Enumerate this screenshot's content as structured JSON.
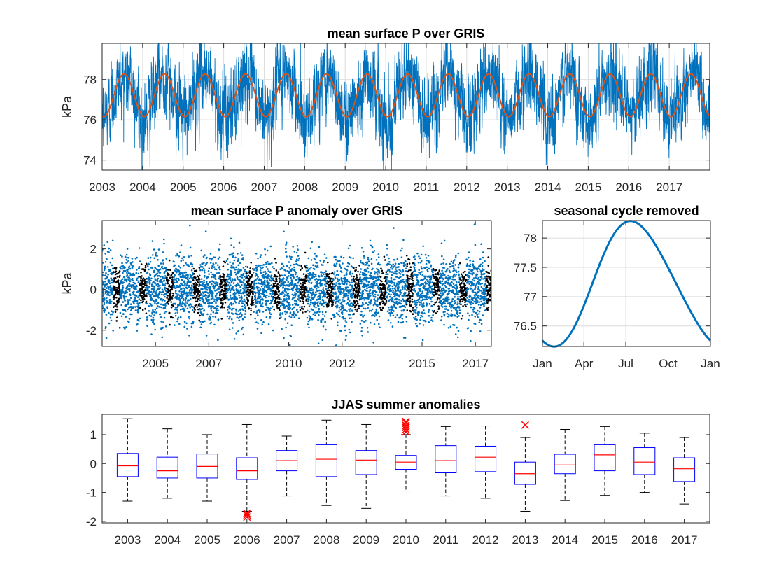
{
  "chart_data": [
    {
      "id": "p1",
      "type": "line",
      "title": "mean surface P over GRIS",
      "xlabel": "",
      "ylabel": "kPa",
      "xlim": [
        2003.0,
        2018.0
      ],
      "ylim": [
        73.5,
        79.8
      ],
      "xticks": [
        2003,
        2004,
        2005,
        2006,
        2007,
        2008,
        2009,
        2010,
        2011,
        2012,
        2013,
        2014,
        2015,
        2016,
        2017
      ],
      "xticklabels": [
        "2003",
        "2004",
        "2005",
        "2006",
        "2007",
        "2008",
        "2009",
        "2010",
        "2011",
        "2012",
        "2013",
        "2014",
        "2015",
        "2016",
        "2017"
      ],
      "yticks": [
        74,
        76,
        78
      ],
      "yticklabels": [
        "74",
        "76",
        "78"
      ],
      "grid": true,
      "series": [
        {
          "kind": "daily-noisy",
          "color": "#0072BD",
          "mean": 77.2,
          "amplitude": 1.05,
          "noise_sd": 0.95
        },
        {
          "kind": "seasonal-cycle",
          "color": "#D95319",
          "mean": 77.22,
          "amplitude": 1.06,
          "peak_month": 7
        }
      ]
    },
    {
      "id": "p2",
      "type": "scatter",
      "title": "mean surface P anomaly over GRIS",
      "xlabel": "",
      "ylabel": "kPa",
      "xlim": [
        2003.0,
        2017.6
      ],
      "ylim": [
        -2.8,
        3.4
      ],
      "xticks": [
        2005,
        2007,
        2010,
        2012,
        2015,
        2017
      ],
      "xticklabels": [
        "2005",
        "2007",
        "2010",
        "2012",
        "2015",
        "2017"
      ],
      "yticks": [
        -2,
        0,
        2
      ],
      "yticklabels": [
        "-2",
        "0",
        "2"
      ],
      "grid": false,
      "series": [
        {
          "kind": "daily-anomaly",
          "color": "#0072BD",
          "noise_sd": 0.85
        },
        {
          "kind": "JJAS-anomaly",
          "color": "#000000",
          "noise_sd": 0.55,
          "months": [
            6,
            7,
            8,
            9
          ]
        }
      ]
    },
    {
      "id": "p3",
      "type": "line",
      "title": "seasonal cycle removed",
      "xlabel": "",
      "ylabel": "",
      "xlim": [
        0,
        365
      ],
      "ylim": [
        76.15,
        78.3
      ],
      "xticks": [
        0,
        90,
        181,
        273,
        365
      ],
      "xticklabels": [
        "Jan",
        "Apr",
        "Jul",
        "Oct",
        "Jan"
      ],
      "yticks": [
        76.5,
        77,
        77.5,
        78
      ],
      "yticklabels": [
        "76.5",
        "77",
        "77.5",
        "78"
      ],
      "grid": true,
      "series": [
        {
          "kind": "seasonal-cycle",
          "color": "#0072BD",
          "mean": 77.22,
          "amplitude": 1.06,
          "peak_day": 182
        }
      ]
    },
    {
      "id": "p4",
      "type": "box",
      "title": "JJAS summer anomalies",
      "xlabel": "",
      "ylabel": "",
      "ylim": [
        -2.05,
        1.7
      ],
      "yticks": [
        -2,
        -1,
        0,
        1
      ],
      "yticklabels": [
        "-2",
        "-1",
        "0",
        "1"
      ],
      "grid": false,
      "categories": [
        "2003",
        "2004",
        "2005",
        "2006",
        "2007",
        "2008",
        "2009",
        "2010",
        "2011",
        "2012",
        "2013",
        "2014",
        "2015",
        "2016",
        "2017"
      ],
      "boxes": [
        {
          "low": -1.3,
          "q1": -0.45,
          "median": -0.08,
          "q3": 0.35,
          "high": 1.55,
          "outliers": []
        },
        {
          "low": -1.2,
          "q1": -0.5,
          "median": -0.25,
          "q3": 0.22,
          "high": 1.2,
          "outliers": []
        },
        {
          "low": -1.3,
          "q1": -0.5,
          "median": -0.1,
          "q3": 0.33,
          "high": 1.0,
          "outliers": []
        },
        {
          "low": -1.65,
          "q1": -0.55,
          "median": -0.25,
          "q3": 0.2,
          "high": 1.35,
          "outliers": [
            -1.72,
            -1.78,
            -1.85
          ]
        },
        {
          "low": -1.12,
          "q1": -0.25,
          "median": 0.1,
          "q3": 0.45,
          "high": 0.95,
          "outliers": []
        },
        {
          "low": -1.45,
          "q1": -0.45,
          "median": 0.15,
          "q3": 0.65,
          "high": 1.5,
          "outliers": []
        },
        {
          "low": -1.55,
          "q1": -0.38,
          "median": 0.12,
          "q3": 0.45,
          "high": 1.35,
          "outliers": []
        },
        {
          "low": -0.95,
          "q1": -0.2,
          "median": 0.05,
          "q3": 0.28,
          "high": 1.0,
          "outliers": [
            1.1,
            1.18,
            1.25,
            1.32,
            1.4,
            1.45
          ]
        },
        {
          "low": -1.12,
          "q1": -0.32,
          "median": 0.1,
          "q3": 0.62,
          "high": 1.28,
          "outliers": []
        },
        {
          "low": -1.2,
          "q1": -0.28,
          "median": 0.22,
          "q3": 0.6,
          "high": 1.3,
          "outliers": []
        },
        {
          "low": -1.65,
          "q1": -0.72,
          "median": -0.35,
          "q3": 0.05,
          "high": 0.9,
          "outliers": [
            1.33
          ]
        },
        {
          "low": -1.28,
          "q1": -0.35,
          "median": -0.05,
          "q3": 0.32,
          "high": 1.18,
          "outliers": []
        },
        {
          "low": -1.1,
          "q1": -0.25,
          "median": 0.3,
          "q3": 0.65,
          "high": 1.28,
          "outliers": []
        },
        {
          "low": -1.0,
          "q1": -0.38,
          "median": 0.05,
          "q3": 0.55,
          "high": 1.05,
          "outliers": []
        },
        {
          "low": -1.4,
          "q1": -0.62,
          "median": -0.18,
          "q3": 0.2,
          "high": 0.9,
          "outliers": []
        }
      ]
    }
  ]
}
